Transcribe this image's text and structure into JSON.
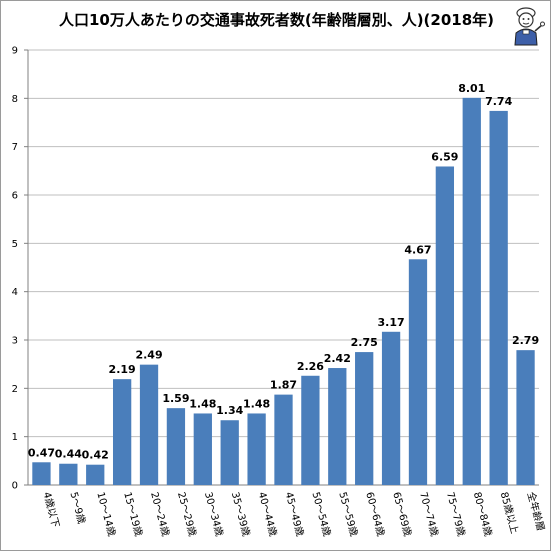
{
  "chart_data": {
    "type": "bar",
    "title": "人口10万人あたりの交通事故死者数(年齢階層別、人)(2018年)",
    "xlabel": "",
    "ylabel": "",
    "ylim": [
      0,
      9
    ],
    "yticks": [
      0,
      1,
      2,
      3,
      4,
      5,
      6,
      7,
      8,
      9
    ],
    "grid": true,
    "legend": "none",
    "bar_color": "#4a7ebb",
    "categories": [
      "4歳以下",
      "5～9歳",
      "10～14歳",
      "15～19歳",
      "20～24歳",
      "25～29歳",
      "30～34歳",
      "35～39歳",
      "40～44歳",
      "45～49歳",
      "50～54歳",
      "55～59歳",
      "60～64歳",
      "65～69歳",
      "70～74歳",
      "75～79歳",
      "80～84歳",
      "85歳以上",
      "全年齢層"
    ],
    "values": [
      0.47,
      0.44,
      0.42,
      2.19,
      2.49,
      1.59,
      1.48,
      1.34,
      1.48,
      1.87,
      2.26,
      2.42,
      2.75,
      3.17,
      4.67,
      6.59,
      8.01,
      7.74,
      2.79
    ],
    "data_labels": [
      "0.47",
      "0.44",
      "0.42",
      "2.19",
      "2.49",
      "1.59",
      "1.48",
      "1.34",
      "1.48",
      "1.87",
      "2.26",
      "2.42",
      "2.75",
      "3.17",
      "4.67",
      "6.59",
      "8.01",
      "7.74",
      "2.79"
    ]
  },
  "decoration": {
    "mascot_icon": "mascot-icon"
  }
}
